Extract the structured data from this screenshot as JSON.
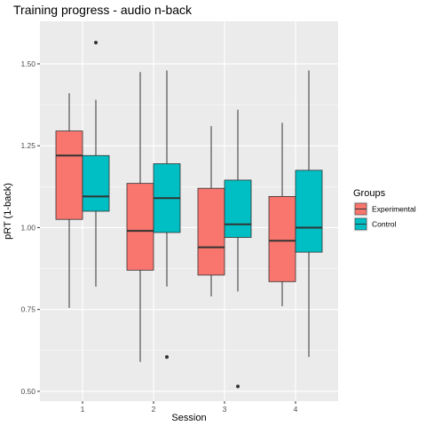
{
  "chart_data": {
    "type": "boxplot",
    "title": "Training progress - audio n-back",
    "xlabel": "Session",
    "ylabel": "pRT (1-back)",
    "ylim": [
      0.47,
      1.63
    ],
    "yticks": [
      "0.50",
      "0.75",
      "1.00",
      "1.25",
      "1.50"
    ],
    "categories": [
      "1",
      "2",
      "3",
      "4"
    ],
    "legend": {
      "title": "Groups",
      "position": "right"
    },
    "grid": true,
    "series": [
      {
        "name": "Experimental",
        "color": "#F8766D",
        "boxes": [
          {
            "whisker_low": 0.755,
            "q1": 1.025,
            "median": 1.22,
            "q3": 1.295,
            "whisker_high": 1.41,
            "outliers": []
          },
          {
            "whisker_low": 0.59,
            "q1": 0.87,
            "median": 0.99,
            "q3": 1.135,
            "whisker_high": 1.475,
            "outliers": []
          },
          {
            "whisker_low": 0.79,
            "q1": 0.855,
            "median": 0.94,
            "q3": 1.12,
            "whisker_high": 1.31,
            "outliers": []
          },
          {
            "whisker_low": 0.76,
            "q1": 0.835,
            "median": 0.96,
            "q3": 1.095,
            "whisker_high": 1.32,
            "outliers": []
          }
        ]
      },
      {
        "name": "Control",
        "color": "#00BFC4",
        "boxes": [
          {
            "whisker_low": 0.82,
            "q1": 1.05,
            "median": 1.095,
            "q3": 1.22,
            "whisker_high": 1.39,
            "outliers": [
              1.565
            ]
          },
          {
            "whisker_low": 0.82,
            "q1": 0.985,
            "median": 1.09,
            "q3": 1.195,
            "whisker_high": 1.48,
            "outliers": [
              0.605
            ]
          },
          {
            "whisker_low": 0.805,
            "q1": 0.97,
            "median": 1.01,
            "q3": 1.145,
            "whisker_high": 1.36,
            "outliers": [
              0.515
            ]
          },
          {
            "whisker_low": 0.605,
            "q1": 0.925,
            "median": 1.0,
            "q3": 1.175,
            "whisker_high": 1.48,
            "outliers": []
          }
        ]
      }
    ]
  }
}
